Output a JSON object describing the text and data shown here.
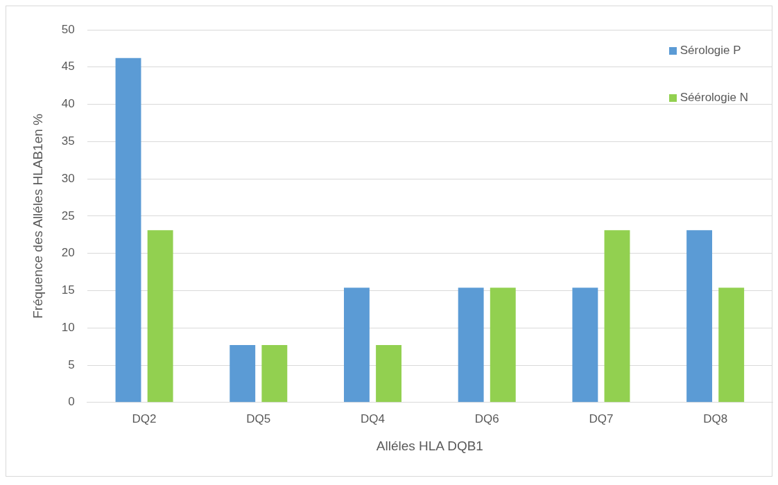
{
  "chart_data": {
    "type": "bar",
    "xlabel": "Alléles HLA DQB1",
    "ylabel": "Fréquence des Alléles HLAB1en %",
    "categories": [
      "DQ2",
      "DQ5",
      "DQ4",
      "DQ6",
      "DQ7",
      "DQ8"
    ],
    "series": [
      {
        "name": "Sérologie P",
        "color": "#5b9bd5",
        "values": [
          46.2,
          7.7,
          15.4,
          15.4,
          15.4,
          23.1
        ]
      },
      {
        "name": "Séérologie N",
        "color": "#92d050",
        "values": [
          23.1,
          7.7,
          7.7,
          15.4,
          23.1,
          15.4
        ]
      }
    ],
    "ylim": [
      0,
      50
    ],
    "yticks": [
      0,
      5,
      10,
      15,
      20,
      25,
      30,
      35,
      40,
      45,
      50
    ],
    "grid": "y",
    "legend": "top right"
  }
}
